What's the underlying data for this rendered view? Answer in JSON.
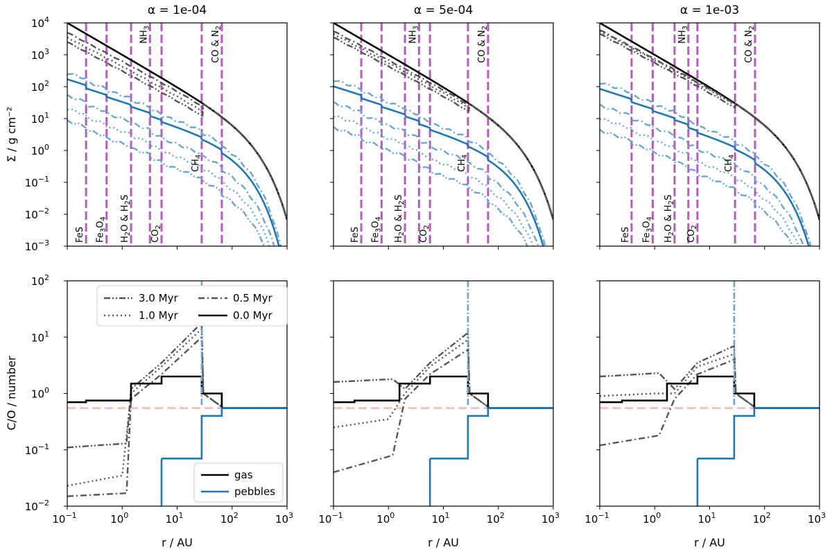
{
  "chart_data": {
    "type": "line",
    "title": "",
    "columns": [
      {
        "title": "α = 1e-04",
        "snowlines_au": [
          0.22,
          0.52,
          1.45,
          3.2,
          5.2,
          28,
          65
        ]
      },
      {
        "title": "α = 5e-04",
        "snowlines_au": [
          0.32,
          0.75,
          2.0,
          3.6,
          5.7,
          28,
          65
        ]
      },
      {
        "title": "α = 1e-03",
        "snowlines_au": [
          0.38,
          0.92,
          2.3,
          4.1,
          6.0,
          29,
          67
        ]
      }
    ],
    "snowline_labels": [
      "FeS",
      "Fe3O4",
      "H2O & H2S",
      "NH3",
      "CO2",
      "CH4",
      "CO & N2"
    ],
    "top": {
      "ylabel": "Σ / g cm⁻²",
      "xlim": [
        0.1,
        1000
      ],
      "ylim": [
        0.001,
        10000
      ],
      "xscale": "log",
      "yscale": "log",
      "x_tick_labels": [
        "10",
        "10",
        "10",
        "10",
        "10"
      ],
      "x_tick_exps": [
        "−1",
        "0",
        "1",
        "2",
        "3"
      ],
      "y_tick_labels": [
        "10",
        "10",
        "10",
        "10",
        "10",
        "10",
        "10",
        "10"
      ],
      "y_tick_exps": [
        "−3",
        "−2",
        "−1",
        "0",
        "1",
        "2",
        "3",
        "4"
      ]
    },
    "bottom": {
      "ylabel": "C/O / number",
      "xlabel": "r / AU",
      "xlim": [
        0.1,
        1000
      ],
      "ylim": [
        0.01,
        100
      ],
      "xscale": "log",
      "yscale": "log",
      "x_tick_labels": [
        "10",
        "10",
        "10",
        "10",
        "10"
      ],
      "x_tick_exps": [
        "−1",
        "0",
        "1",
        "2",
        "3"
      ],
      "y_tick_labels": [
        "10",
        "10",
        "10",
        "10",
        "10"
      ],
      "y_tick_exps": [
        "−2",
        "−1",
        "0",
        "1",
        "2"
      ],
      "solar_co": 0.55,
      "gas_co_steps": [
        {
          "x0": 0.1,
          "x1": 0.22,
          "y": 0.7
        },
        {
          "x0": 0.22,
          "x1": 1.45,
          "y": 0.75
        },
        {
          "x0": 1.45,
          "x1": 5.2,
          "y": 1.5
        },
        {
          "x0": 5.2,
          "x1": 28,
          "y": 2.0
        },
        {
          "x0": 28,
          "x1": 65,
          "y": 1.0
        },
        {
          "x0": 65,
          "x1": 1000,
          "y": 0.55
        }
      ],
      "pebble_co_steps": [
        {
          "x0": 5.2,
          "x1": 28,
          "y": 0.07
        },
        {
          "x0": 28,
          "x1": 65,
          "y": 0.4
        },
        {
          "x0": 65,
          "x1": 1000,
          "y": 0.55
        }
      ]
    },
    "series": [
      {
        "name": "3.0 Myr",
        "style": "dash-dot-dot",
        "time_myr": 3.0
      },
      {
        "name": "1.0 Myr",
        "style": "dotted",
        "time_myr": 1.0
      },
      {
        "name": "0.5 Myr",
        "style": "dash-dot",
        "time_myr": 0.5
      },
      {
        "name": "0.0 Myr",
        "style": "solid",
        "time_myr": 0.0
      }
    ],
    "legend_time": {
      "position": "top-left",
      "entries": [
        "3.0 Myr",
        "0.5 Myr",
        "1.0 Myr",
        "0.0 Myr"
      ]
    },
    "legend_phase": {
      "position": "bottom-right",
      "entries": [
        "gas",
        "pebbles"
      ]
    },
    "colors": {
      "gas": "#000000",
      "gas_evolved": "#555555",
      "pebbles": "#1f77b4",
      "pebbles_evolved": "#6aa6cf",
      "snowline": "#b75bbf",
      "solar": "#f4b6b0"
    }
  }
}
